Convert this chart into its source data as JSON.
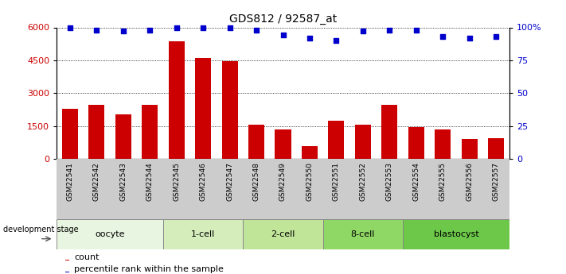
{
  "title": "GDS812 / 92587_at",
  "samples": [
    "GSM22541",
    "GSM22542",
    "GSM22543",
    "GSM22544",
    "GSM22545",
    "GSM22546",
    "GSM22547",
    "GSM22548",
    "GSM22549",
    "GSM22550",
    "GSM22551",
    "GSM22552",
    "GSM22553",
    "GSM22554",
    "GSM22555",
    "GSM22556",
    "GSM22557"
  ],
  "counts": [
    2300,
    2450,
    2050,
    2450,
    5350,
    4600,
    4450,
    1550,
    1350,
    600,
    1750,
    1550,
    2450,
    1450,
    1350,
    900,
    950
  ],
  "percentiles": [
    100,
    98,
    97,
    98,
    100,
    100,
    100,
    98,
    94,
    92,
    90,
    97,
    98,
    98,
    93,
    92,
    93
  ],
  "stages": [
    {
      "label": "oocyte",
      "start": 0,
      "end": 4
    },
    {
      "label": "1-cell",
      "start": 4,
      "end": 7
    },
    {
      "label": "2-cell",
      "start": 7,
      "end": 10
    },
    {
      "label": "8-cell",
      "start": 10,
      "end": 13
    },
    {
      "label": "blastocyst",
      "start": 13,
      "end": 17
    }
  ],
  "bar_color": "#cc0000",
  "dot_color": "#0000cc",
  "ylim_left": [
    0,
    6000
  ],
  "ylim_right": [
    0,
    100
  ],
  "yticks_left": [
    0,
    1500,
    3000,
    4500,
    6000
  ],
  "yticks_right": [
    0,
    25,
    50,
    75,
    100
  ],
  "stage_colors": [
    "#e8f5e0",
    "#d4edbb",
    "#c0e599",
    "#90d865",
    "#6dc84a"
  ],
  "legend_count_label": "count",
  "legend_pct_label": "percentile rank within the sample",
  "dev_stage_label": "development stage"
}
